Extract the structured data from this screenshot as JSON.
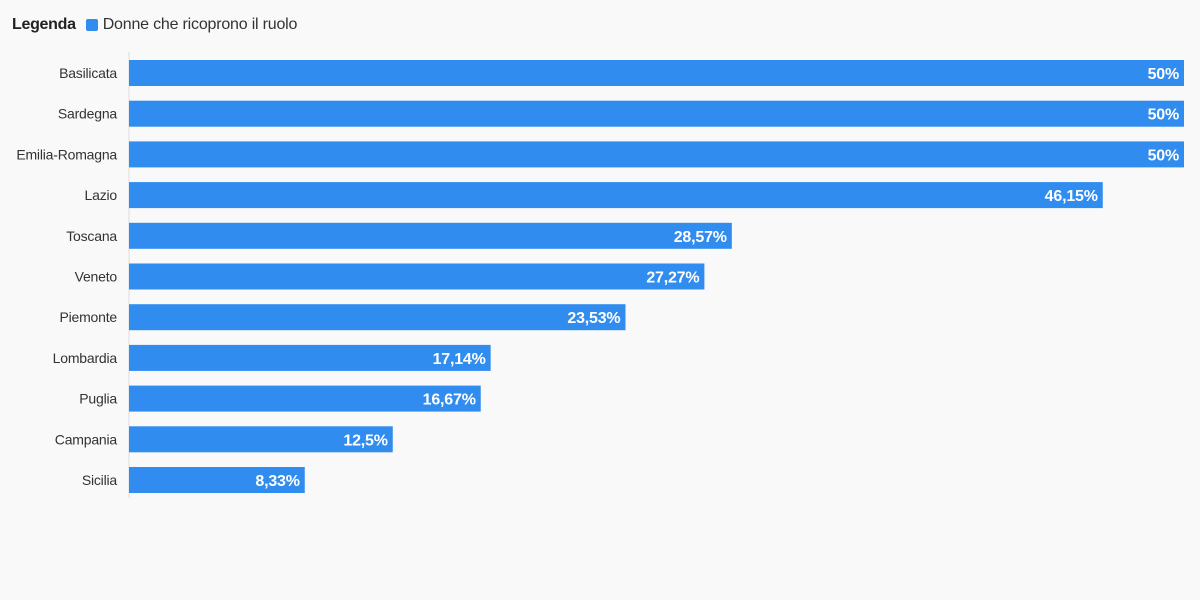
{
  "legend": {
    "title": "Legenda",
    "series_label": "Donne che ricoprono il ruolo"
  },
  "colors": {
    "bar": "#318cef",
    "axis": "#dddddd"
  },
  "chart_data": {
    "type": "bar",
    "orientation": "horizontal",
    "title": "",
    "xlabel": "",
    "ylabel": "",
    "xlim": [
      0,
      50
    ],
    "grid": false,
    "legend_position": "top-left",
    "categories": [
      "Basilicata",
      "Sardegna",
      "Emilia-Romagna",
      "Lazio",
      "Toscana",
      "Veneto",
      "Piemonte",
      "Lombardia",
      "Puglia",
      "Campania",
      "Sicilia"
    ],
    "series": [
      {
        "name": "Donne che ricoprono il ruolo",
        "values": [
          50,
          50,
          50,
          46.15,
          28.57,
          27.27,
          23.53,
          17.14,
          16.67,
          12.5,
          8.33
        ],
        "labels": [
          "50%",
          "50%",
          "50%",
          "46,15%",
          "28,57%",
          "27,27%",
          "23,53%",
          "17,14%",
          "16,67%",
          "12,5%",
          "8,33%"
        ]
      }
    ]
  }
}
